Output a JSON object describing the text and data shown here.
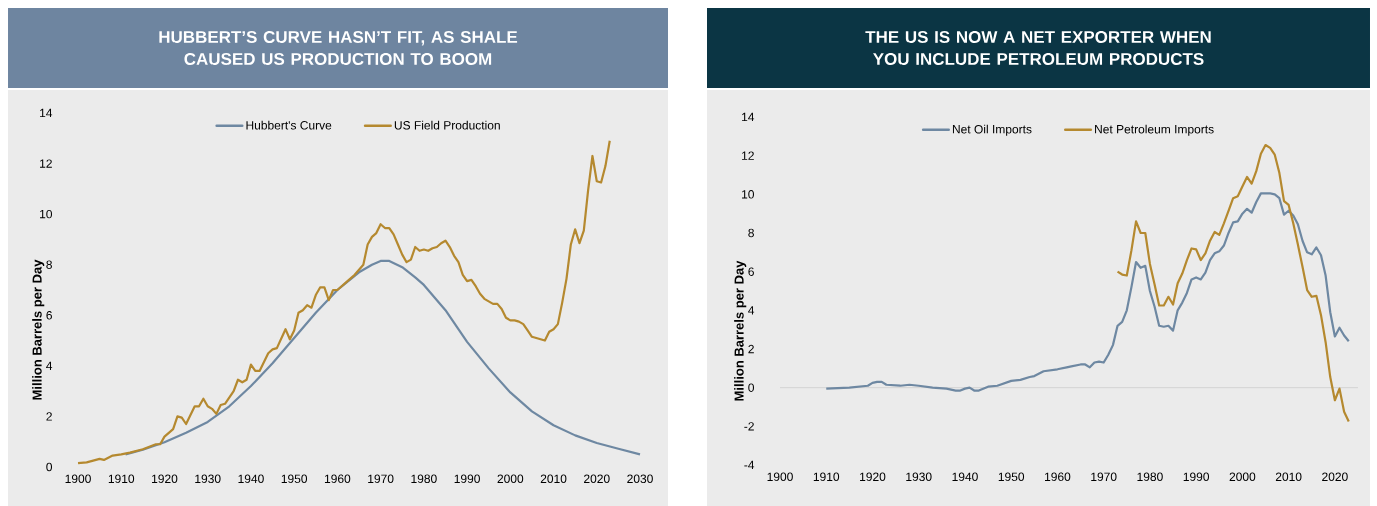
{
  "chart_data": [
    {
      "type": "line",
      "title": "HUBBERT’S CURVE HASN’T FIT, AS SHALE CAUSED US PRODUCTION TO BOOM",
      "ylabel": "Million Barrels per Day",
      "xlim": [
        1900,
        2030
      ],
      "ylim": [
        0,
        14
      ],
      "xticks": [
        1900,
        1910,
        1920,
        1930,
        1940,
        1950,
        1960,
        1970,
        1980,
        1990,
        2000,
        2010,
        2020,
        2030
      ],
      "yticks": [
        0,
        2,
        4,
        6,
        8,
        10,
        12,
        14
      ],
      "legend": "top",
      "marker": "none",
      "line_style": "solid",
      "series": [
        {
          "name": "Hubbert's Curve",
          "color": "#6e88a2",
          "x": [
            1911,
            1915,
            1920,
            1925,
            1930,
            1935,
            1940,
            1945,
            1950,
            1955,
            1960,
            1965,
            1968,
            1970,
            1972,
            1975,
            1978,
            1980,
            1985,
            1990,
            1995,
            2000,
            2005,
            2010,
            2015,
            2020,
            2025,
            2030
          ],
          "values": [
            0.5,
            0.68,
            0.98,
            1.35,
            1.78,
            2.4,
            3.2,
            4.1,
            5.1,
            6.1,
            7.0,
            7.7,
            8.0,
            8.15,
            8.15,
            7.9,
            7.5,
            7.2,
            6.2,
            4.95,
            3.9,
            2.95,
            2.2,
            1.65,
            1.25,
            0.95,
            0.72,
            0.5
          ]
        },
        {
          "name": "US Field Production",
          "color": "#b5892f",
          "x": [
            1900,
            1902,
            1905,
            1906,
            1908,
            1910,
            1912,
            1915,
            1918,
            1919,
            1920,
            1922,
            1923,
            1924,
            1925,
            1927,
            1928,
            1929,
            1930,
            1931,
            1932,
            1933,
            1934,
            1936,
            1937,
            1938,
            1939,
            1940,
            1941,
            1942,
            1944,
            1945,
            1946,
            1948,
            1949,
            1950,
            1951,
            1952,
            1953,
            1954,
            1955,
            1956,
            1957,
            1958,
            1959,
            1960,
            1962,
            1964,
            1966,
            1967,
            1968,
            1969,
            1970,
            1971,
            1972,
            1973,
            1974,
            1975,
            1976,
            1977,
            1978,
            1979,
            1980,
            1981,
            1982,
            1983,
            1984,
            1985,
            1986,
            1987,
            1988,
            1989,
            1990,
            1991,
            1992,
            1993,
            1994,
            1995,
            1996,
            1997,
            1998,
            1999,
            2000,
            2001,
            2002,
            2003,
            2004,
            2005,
            2006,
            2007,
            2008,
            2009,
            2010,
            2011,
            2012,
            2013,
            2014,
            2015,
            2016,
            2017,
            2018,
            2019,
            2020,
            2021,
            2022,
            2023
          ],
          "values": [
            0.15,
            0.18,
            0.32,
            0.28,
            0.45,
            0.5,
            0.57,
            0.7,
            0.9,
            0.9,
            1.2,
            1.5,
            2.0,
            1.95,
            1.7,
            2.4,
            2.4,
            2.7,
            2.4,
            2.3,
            2.1,
            2.45,
            2.5,
            3.0,
            3.45,
            3.35,
            3.45,
            4.05,
            3.8,
            3.8,
            4.5,
            4.65,
            4.7,
            5.45,
            5.05,
            5.4,
            6.1,
            6.2,
            6.4,
            6.3,
            6.8,
            7.1,
            7.1,
            6.6,
            7.0,
            7.0,
            7.3,
            7.6,
            8.0,
            8.8,
            9.1,
            9.25,
            9.6,
            9.45,
            9.45,
            9.2,
            8.8,
            8.4,
            8.1,
            8.2,
            8.7,
            8.55,
            8.6,
            8.55,
            8.65,
            8.7,
            8.85,
            8.95,
            8.7,
            8.35,
            8.1,
            7.6,
            7.35,
            7.4,
            7.15,
            6.85,
            6.65,
            6.55,
            6.45,
            6.45,
            6.25,
            5.9,
            5.8,
            5.8,
            5.75,
            5.65,
            5.4,
            5.15,
            5.1,
            5.05,
            5.0,
            5.35,
            5.45,
            5.65,
            6.5,
            7.45,
            8.8,
            9.4,
            8.85,
            9.35,
            10.95,
            12.3,
            11.3,
            11.25,
            11.9,
            12.9
          ]
        }
      ]
    },
    {
      "type": "line",
      "title": "THE US IS NOW A NET EXPORTER WHEN YOU INCLUDE PETROLEUM PRODUCTS",
      "ylabel": "Million Barrels per Day",
      "xlim": [
        1900,
        2025
      ],
      "ylim": [
        -4,
        14
      ],
      "xticks": [
        1900,
        1910,
        1920,
        1930,
        1940,
        1950,
        1960,
        1970,
        1980,
        1990,
        2000,
        2010,
        2020
      ],
      "yticks": [
        -4,
        -2,
        0,
        2,
        4,
        6,
        8,
        10,
        12,
        14
      ],
      "legend": "top",
      "marker": "none",
      "line_style": "solid",
      "ref_lines": [
        {
          "axis": "y",
          "value": 0,
          "color": "#d4d4d4"
        }
      ],
      "series": [
        {
          "name": "Net Oil Imports",
          "color": "#6e88a2",
          "x": [
            1910,
            1915,
            1919,
            1920,
            1921,
            1922,
            1923,
            1926,
            1928,
            1930,
            1933,
            1936,
            1938,
            1939,
            1940,
            1941,
            1942,
            1943,
            1945,
            1947,
            1950,
            1952,
            1954,
            1955,
            1957,
            1960,
            1962,
            1963,
            1965,
            1966,
            1967,
            1968,
            1969,
            1970,
            1971,
            1972,
            1973,
            1974,
            1975,
            1976,
            1977,
            1978,
            1979,
            1980,
            1981,
            1982,
            1983,
            1984,
            1985,
            1986,
            1987,
            1988,
            1989,
            1990,
            1991,
            1992,
            1993,
            1994,
            1995,
            1996,
            1997,
            1998,
            1999,
            2000,
            2001,
            2002,
            2003,
            2004,
            2005,
            2006,
            2007,
            2008,
            2009,
            2010,
            2011,
            2012,
            2013,
            2014,
            2015,
            2016,
            2017,
            2018,
            2019,
            2020,
            2021,
            2022,
            2023
          ],
          "values": [
            -0.05,
            0.0,
            0.1,
            0.25,
            0.3,
            0.3,
            0.15,
            0.1,
            0.15,
            0.1,
            0.0,
            -0.05,
            -0.15,
            -0.15,
            -0.05,
            0.0,
            -0.15,
            -0.15,
            0.05,
            0.1,
            0.35,
            0.4,
            0.55,
            0.6,
            0.85,
            0.95,
            1.05,
            1.1,
            1.2,
            1.2,
            1.05,
            1.3,
            1.35,
            1.3,
            1.7,
            2.2,
            3.2,
            3.4,
            4.0,
            5.2,
            6.5,
            6.2,
            6.3,
            5.0,
            4.2,
            3.2,
            3.15,
            3.2,
            2.95,
            4.0,
            4.4,
            4.9,
            5.6,
            5.7,
            5.6,
            5.95,
            6.6,
            6.95,
            7.05,
            7.35,
            8.0,
            8.55,
            8.6,
            9.0,
            9.25,
            9.05,
            9.6,
            10.05,
            10.05,
            10.05,
            10.0,
            9.8,
            8.95,
            9.15,
            8.9,
            8.45,
            7.6,
            7.0,
            6.9,
            7.25,
            6.85,
            5.8,
            3.9,
            2.65,
            3.1,
            2.7,
            2.4
          ]
        },
        {
          "name": "Net Petroleum Imports",
          "color": "#b5892f",
          "x": [
            1973,
            1974,
            1975,
            1976,
            1977,
            1978,
            1979,
            1980,
            1981,
            1982,
            1983,
            1984,
            1985,
            1986,
            1987,
            1988,
            1989,
            1990,
            1991,
            1992,
            1993,
            1994,
            1995,
            1996,
            1997,
            1998,
            1999,
            2000,
            2001,
            2002,
            2003,
            2004,
            2005,
            2006,
            2007,
            2008,
            2009,
            2010,
            2011,
            2012,
            2013,
            2014,
            2015,
            2016,
            2017,
            2018,
            2019,
            2020,
            2021,
            2022,
            2023
          ],
          "values": [
            6.0,
            5.85,
            5.8,
            7.1,
            8.6,
            8.0,
            8.0,
            6.4,
            5.35,
            4.25,
            4.25,
            4.7,
            4.3,
            5.4,
            5.9,
            6.6,
            7.2,
            7.15,
            6.6,
            6.95,
            7.6,
            8.05,
            7.9,
            8.5,
            9.15,
            9.8,
            9.9,
            10.4,
            10.9,
            10.55,
            11.2,
            12.1,
            12.55,
            12.4,
            12.05,
            11.1,
            9.65,
            9.45,
            8.5,
            7.4,
            6.25,
            5.05,
            4.7,
            4.75,
            3.75,
            2.35,
            0.55,
            -0.65,
            -0.05,
            -1.25,
            -1.75
          ]
        }
      ]
    }
  ]
}
